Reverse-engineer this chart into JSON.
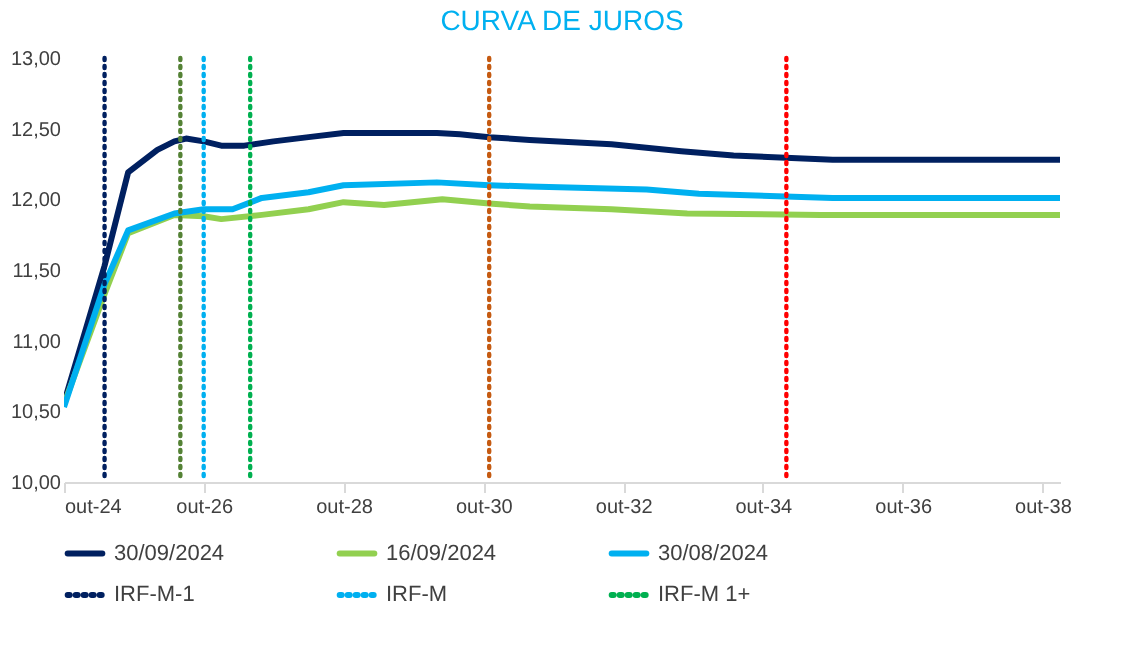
{
  "chart_data": {
    "type": "line",
    "title": "CURVA DE JUROS",
    "line_style": "solid",
    "legend": "bottom",
    "xlim": [
      "2024-10",
      "2039-01"
    ],
    "xticks": [
      {
        "value": "2024-10",
        "label": "out-24"
      },
      {
        "value": "2026-10",
        "label": "out-26"
      },
      {
        "value": "2028-10",
        "label": "out-28"
      },
      {
        "value": "2030-10",
        "label": "out-30"
      },
      {
        "value": "2032-10",
        "label": "out-32"
      },
      {
        "value": "2034-10",
        "label": "out-34"
      },
      {
        "value": "2036-10",
        "label": "out-36"
      },
      {
        "value": "2038-10",
        "label": "out-38"
      }
    ],
    "ylim": [
      10,
      13
    ],
    "yticks": [
      {
        "value": 10,
        "label": "10,00"
      },
      {
        "value": 10.5,
        "label": "10,50"
      },
      {
        "value": 11,
        "label": "11,00"
      },
      {
        "value": 11.5,
        "label": "11,50"
      },
      {
        "value": 12,
        "label": "12,00"
      },
      {
        "value": 12.5,
        "label": "12,50"
      },
      {
        "value": 13,
        "label": "13,00"
      }
    ],
    "series": [
      {
        "name": "30/09/2024",
        "color": "#002060",
        "x": [
          "2024-10",
          "2025-05",
          "2025-09",
          "2026-02",
          "2026-05",
          "2026-07",
          "2026-10",
          "2027-01",
          "2027-05",
          "2027-10",
          "2028-04",
          "2028-10",
          "2030-02",
          "2030-06",
          "2030-11",
          "2031-06",
          "2032-08",
          "2033-08",
          "2034-05",
          "2035-10",
          "2039-01"
        ],
        "values": [
          10.56,
          11.53,
          12.19,
          12.35,
          12.41,
          12.43,
          12.41,
          12.38,
          12.38,
          12.41,
          12.44,
          12.47,
          12.47,
          12.46,
          12.44,
          12.42,
          12.39,
          12.34,
          12.31,
          12.28,
          12.28
        ]
      },
      {
        "name": "16/09/2024",
        "color": "#92d050",
        "x": [
          "2024-10",
          "2025-05",
          "2025-09",
          "2026-05",
          "2026-10",
          "2027-01",
          "2027-08",
          "2028-04",
          "2028-10",
          "2029-05",
          "2030-03",
          "2030-11",
          "2031-06",
          "2032-08",
          "2033-09",
          "2035-08",
          "2039-01"
        ],
        "values": [
          10.55,
          11.33,
          11.76,
          11.89,
          11.88,
          11.86,
          11.89,
          11.93,
          11.98,
          11.96,
          12.0,
          11.97,
          11.95,
          11.93,
          11.9,
          11.89,
          11.89
        ]
      },
      {
        "name": "30/08/2024",
        "color": "#00b0f0",
        "x": [
          "2024-10",
          "2025-05",
          "2025-09",
          "2026-05",
          "2026-10",
          "2027-03",
          "2027-08",
          "2028-04",
          "2028-10",
          "2030-02",
          "2030-11",
          "2031-06",
          "2033-02",
          "2033-11",
          "2035-10",
          "2039-01"
        ],
        "values": [
          10.53,
          11.4,
          11.78,
          11.9,
          11.93,
          11.93,
          12.01,
          12.05,
          12.1,
          12.12,
          12.1,
          12.09,
          12.07,
          12.04,
          12.01,
          12.01
        ]
      }
    ],
    "ref_lines": [
      {
        "axis": "x",
        "value": "2025-05",
        "label": "IRF-M-1",
        "color": "#002060",
        "line_style": "dotted"
      },
      {
        "axis": "x",
        "value": "2026-06",
        "color": "#548235",
        "line_style": "dotted"
      },
      {
        "axis": "x",
        "value": "2026-10",
        "label": "IRF-M",
        "color": "#00b0f0",
        "line_style": "dotted"
      },
      {
        "axis": "x",
        "value": "2027-06",
        "label": "IRF-M 1+",
        "color": "#00b050",
        "line_style": "dotted"
      },
      {
        "axis": "x",
        "value": "2030-11",
        "color": "#c55a11",
        "line_style": "dotted"
      },
      {
        "axis": "x",
        "value": "2035-02",
        "color": "#ff0000",
        "line_style": "dotted"
      }
    ]
  }
}
